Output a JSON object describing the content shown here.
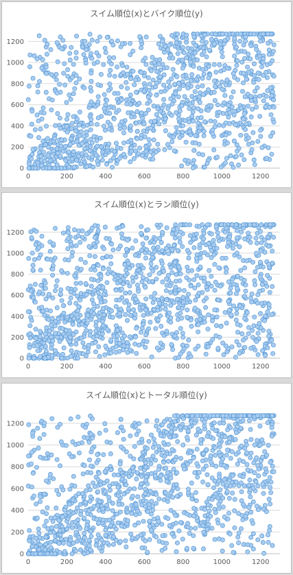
{
  "colors": {
    "marker_fill": "#a9ccf0",
    "marker_stroke": "#5b9bd5",
    "grid": "#d9d9d9",
    "axis": "#bfbfbf",
    "text": "#595959"
  },
  "chart_data": [
    {
      "type": "scatter",
      "title": "スイム順位(x)とバイク順位(y)",
      "xlabel": "",
      "ylabel": "",
      "xlim": [
        0,
        1300
      ],
      "ylim": [
        0,
        1300
      ],
      "xticks": [
        0,
        200,
        400,
        600,
        800,
        1000,
        1200
      ],
      "yticks": [
        0,
        200,
        400,
        600,
        800,
        1000,
        1200
      ],
      "grid": "horizontal",
      "legend": "none",
      "correlation_hint": 0.5,
      "point_count": 1270,
      "sample_points": [
        [
          10,
          5
        ],
        [
          40,
          60
        ],
        [
          80,
          150
        ],
        [
          150,
          120
        ],
        [
          200,
          350
        ],
        [
          300,
          250
        ],
        [
          400,
          600
        ],
        [
          500,
          450
        ],
        [
          600,
          800
        ],
        [
          700,
          650
        ],
        [
          800,
          1000
        ],
        [
          900,
          850
        ],
        [
          1000,
          1100
        ],
        [
          1100,
          900
        ],
        [
          1200,
          1250
        ],
        [
          1250,
          1200
        ],
        [
          1050,
          40
        ],
        [
          1200,
          300
        ],
        [
          50,
          780
        ],
        [
          250,
          1250
        ]
      ]
    },
    {
      "type": "scatter",
      "title": "スイム順位(x)とラン順位(y)",
      "xlabel": "",
      "ylabel": "",
      "xlim": [
        0,
        1300
      ],
      "ylim": [
        0,
        1300
      ],
      "xticks": [
        0,
        200,
        400,
        600,
        800,
        1000,
        1200
      ],
      "yticks": [
        0,
        200,
        400,
        600,
        800,
        1000,
        1200
      ],
      "grid": "horizontal",
      "legend": "none",
      "correlation_hint": 0.3,
      "point_count": 1270,
      "sample_points": [
        [
          10,
          10
        ],
        [
          60,
          120
        ],
        [
          100,
          400
        ],
        [
          200,
          250
        ],
        [
          300,
          700
        ],
        [
          400,
          300
        ],
        [
          500,
          900
        ],
        [
          600,
          500
        ],
        [
          700,
          1000
        ],
        [
          800,
          200
        ],
        [
          900,
          1100
        ],
        [
          1000,
          700
        ],
        [
          1100,
          1200
        ],
        [
          1200,
          900
        ],
        [
          1250,
          1250
        ],
        [
          760,
          0
        ],
        [
          30,
          1220
        ],
        [
          1250,
          180
        ]
      ]
    },
    {
      "type": "scatter",
      "title": "スイム順位(x)とトータル順位(y)",
      "xlabel": "",
      "ylabel": "",
      "xlim": [
        0,
        1300
      ],
      "ylim": [
        0,
        1300
      ],
      "xticks": [
        0,
        200,
        400,
        600,
        800,
        1000,
        1200
      ],
      "yticks": [
        0,
        200,
        400,
        600,
        800,
        1000,
        1200
      ],
      "grid": "horizontal",
      "legend": "none",
      "correlation_hint": 0.55,
      "point_count": 1270,
      "sample_points": [
        [
          5,
          5
        ],
        [
          50,
          80
        ],
        [
          100,
          150
        ],
        [
          200,
          300
        ],
        [
          300,
          400
        ],
        [
          400,
          550
        ],
        [
          500,
          650
        ],
        [
          600,
          800
        ],
        [
          700,
          850
        ],
        [
          800,
          1000
        ],
        [
          900,
          1050
        ],
        [
          1000,
          1100
        ],
        [
          1100,
          1150
        ],
        [
          1200,
          1250
        ],
        [
          1250,
          1230
        ],
        [
          1150,
          150
        ],
        [
          220,
          1240
        ],
        [
          60,
          1060
        ]
      ]
    }
  ]
}
